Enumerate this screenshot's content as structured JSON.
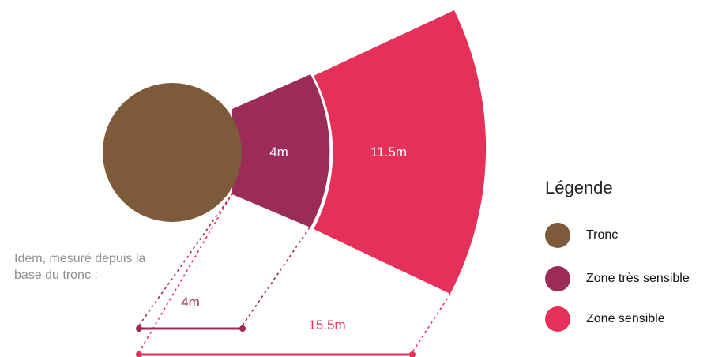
{
  "colors": {
    "trunk": "#7c5a3a",
    "very_sensitive": "#9b2c58",
    "sensitive": "#e5305a",
    "dotted_trunk": "#9b2c58",
    "dotted_sensitive": "#e5305a"
  },
  "diagram": {
    "trunk_label": "",
    "very_sensitive_width_label": "4m",
    "sensitive_width_label": "11.5m"
  },
  "measure": {
    "note": "Idem, mesuré depuis la base du tronc :",
    "short_label": "4m",
    "long_label": "15.5m"
  },
  "legend": {
    "title": "Légende",
    "items": [
      {
        "label": "Tronc",
        "color": "#7c5a3a",
        "icon": "trunk-swatch"
      },
      {
        "label": "Zone très sensible",
        "color": "#9b2c58",
        "icon": "very-sensitive-swatch"
      },
      {
        "label": "Zone sensible",
        "color": "#e5305a",
        "icon": "sensitive-swatch"
      }
    ]
  }
}
